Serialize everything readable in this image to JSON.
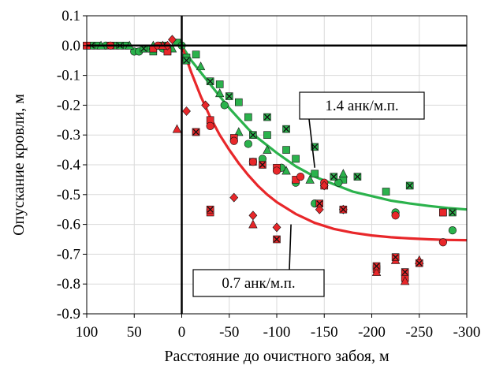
{
  "chart_data": {
    "type": "scatter",
    "title": "",
    "xlabel": "Расстояние до очистного забоя, м",
    "ylabel": "Опускание кровли, м",
    "xlim": [
      100,
      -300
    ],
    "ylim": [
      -0.9,
      0.1
    ],
    "x_ticks": [
      100,
      50,
      0,
      -50,
      -100,
      -150,
      -200,
      -250,
      -300
    ],
    "x_tick_labels": [
      "100",
      "50",
      "0",
      "-50",
      "-100",
      "-150",
      "-200",
      "-250",
      "-300"
    ],
    "y_ticks": [
      0.1,
      0.0,
      -0.1,
      -0.2,
      -0.3,
      -0.4,
      -0.5,
      -0.6,
      -0.7,
      -0.8,
      -0.9
    ],
    "y_tick_labels": [
      "0.1",
      "0.0",
      "-0.1",
      "-0.2",
      "-0.3",
      "-0.4",
      "-0.5",
      "-0.6",
      "-0.7",
      "-0.8",
      "-0.9"
    ],
    "grid": true,
    "colors": {
      "green": "#2bb24c",
      "red": "#e8272a",
      "dark": "#111111"
    },
    "curves": [
      {
        "label": "1.4 анк/м.п.",
        "color": "#2bb24c",
        "x": [
          0,
          -10,
          -20,
          -30,
          -40,
          -50,
          -60,
          -70,
          -80,
          -90,
          -100,
          -120,
          -140,
          -160,
          -180,
          -200,
          -220,
          -240,
          -260,
          -280,
          -300
        ],
        "y": [
          0.0,
          -0.05,
          -0.09,
          -0.13,
          -0.17,
          -0.21,
          -0.245,
          -0.28,
          -0.31,
          -0.335,
          -0.36,
          -0.405,
          -0.44,
          -0.465,
          -0.49,
          -0.505,
          -0.52,
          -0.53,
          -0.538,
          -0.545,
          -0.55
        ]
      },
      {
        "label": "0.7 анк/м.п.",
        "color": "#e8272a",
        "x": [
          0,
          -10,
          -20,
          -30,
          -40,
          -50,
          -60,
          -70,
          -80,
          -90,
          -100,
          -120,
          -140,
          -160,
          -180,
          -200,
          -220,
          -240,
          -260,
          -280,
          -300
        ],
        "y": [
          0.0,
          -0.09,
          -0.17,
          -0.24,
          -0.3,
          -0.35,
          -0.395,
          -0.435,
          -0.47,
          -0.5,
          -0.525,
          -0.565,
          -0.595,
          -0.615,
          -0.628,
          -0.637,
          -0.643,
          -0.647,
          -0.65,
          -0.652,
          -0.653
        ]
      }
    ],
    "annotations": [
      {
        "text": "1.4 анк/м.п.",
        "points_to": [
          -140,
          -0.41
        ]
      },
      {
        "text": "0.7 анк/м.п.",
        "points_to": [
          -115,
          -0.6
        ]
      }
    ],
    "series": [
      {
        "color": "#2bb24c",
        "marker": "square",
        "points": [
          [
            100,
            0.0
          ],
          [
            90,
            0.0
          ],
          [
            70,
            0.0
          ],
          [
            60,
            0.0
          ],
          [
            40,
            -0.01
          ],
          [
            30,
            -0.02
          ],
          [
            15,
            -0.02
          ],
          [
            5,
            0.01
          ],
          [
            -5,
            -0.04
          ],
          [
            -15,
            -0.03
          ],
          [
            -40,
            -0.13
          ],
          [
            -60,
            -0.19
          ],
          [
            -70,
            -0.24
          ],
          [
            -90,
            -0.3
          ],
          [
            -110,
            -0.35
          ],
          [
            -120,
            -0.38
          ],
          [
            -140,
            -0.43
          ],
          [
            -170,
            -0.45
          ],
          [
            -215,
            -0.49
          ],
          [
            -275,
            -0.56
          ]
        ]
      },
      {
        "color": "#2bb24c",
        "marker": "circle",
        "points": [
          [
            80,
            0.0
          ],
          [
            50,
            -0.02
          ],
          [
            45,
            -0.02
          ],
          [
            35,
            -0.01
          ],
          [
            20,
            -0.01
          ],
          [
            0,
            0.0
          ],
          [
            -45,
            -0.2
          ],
          [
            -70,
            -0.33
          ],
          [
            -85,
            -0.38
          ],
          [
            -105,
            -0.41
          ],
          [
            -120,
            -0.46
          ],
          [
            -140,
            -0.53
          ],
          [
            -165,
            -0.46
          ],
          [
            -225,
            -0.56
          ],
          [
            -285,
            -0.62
          ]
        ]
      },
      {
        "color": "#2bb24c",
        "marker": "triangle",
        "points": [
          [
            85,
            0.0
          ],
          [
            55,
            0.0
          ],
          [
            30,
            0.0
          ],
          [
            10,
            -0.01
          ],
          [
            -20,
            -0.07
          ],
          [
            -40,
            -0.16
          ],
          [
            -60,
            -0.29
          ],
          [
            -90,
            -0.35
          ],
          [
            -110,
            -0.42
          ],
          [
            -135,
            -0.45
          ],
          [
            -170,
            -0.43
          ]
        ]
      },
      {
        "color": "#2bb24c",
        "marker": "cross",
        "points": [
          [
            95,
            0.0
          ],
          [
            65,
            0.0
          ],
          [
            40,
            -0.01
          ],
          [
            20,
            0.0
          ],
          [
            -5,
            -0.05
          ],
          [
            -30,
            -0.12
          ],
          [
            -50,
            -0.17
          ],
          [
            -75,
            -0.3
          ],
          [
            -90,
            -0.24
          ],
          [
            -110,
            -0.28
          ],
          [
            -140,
            -0.34
          ],
          [
            -160,
            -0.44
          ],
          [
            -185,
            -0.44
          ],
          [
            -240,
            -0.47
          ],
          [
            -285,
            -0.56
          ]
        ]
      },
      {
        "color": "#e8272a",
        "marker": "square",
        "points": [
          [
            100,
            0.0
          ],
          [
            75,
            0.0
          ],
          [
            30,
            -0.01
          ],
          [
            15,
            -0.02
          ],
          [
            -15,
            -0.29
          ],
          [
            -30,
            -0.25
          ],
          [
            -55,
            -0.31
          ],
          [
            -75,
            -0.39
          ],
          [
            -100,
            -0.41
          ],
          [
            -120,
            -0.45
          ],
          [
            -150,
            -0.47
          ],
          [
            -275,
            -0.56
          ],
          [
            -205,
            -0.75
          ],
          [
            -235,
            -0.78
          ],
          [
            -30,
            -0.56
          ]
        ]
      },
      {
        "color": "#e8272a",
        "marker": "circle",
        "points": [
          [
            75,
            0.0
          ],
          [
            25,
            0.0
          ],
          [
            -30,
            -0.27
          ],
          [
            -55,
            -0.32
          ],
          [
            -75,
            -0.39
          ],
          [
            -100,
            -0.42
          ],
          [
            -125,
            -0.44
          ],
          [
            -150,
            -0.46
          ],
          [
            -225,
            -0.57
          ],
          [
            -275,
            -0.66
          ]
        ]
      },
      {
        "color": "#e8272a",
        "marker": "triangle",
        "points": [
          [
            20,
            0.0
          ],
          [
            5,
            -0.28
          ],
          [
            -75,
            -0.6
          ],
          [
            -225,
            -0.72
          ],
          [
            -250,
            -0.72
          ],
          [
            -205,
            -0.76
          ],
          [
            -235,
            -0.79
          ]
        ]
      },
      {
        "color": "#e8272a",
        "marker": "diamond",
        "points": [
          [
            10,
            0.02
          ],
          [
            15,
            0.0
          ],
          [
            -5,
            -0.22
          ],
          [
            -25,
            -0.2
          ],
          [
            -55,
            -0.51
          ],
          [
            -75,
            -0.57
          ],
          [
            -100,
            -0.61
          ],
          [
            -150,
            -0.47
          ],
          [
            -145,
            -0.55
          ],
          [
            -170,
            -0.55
          ]
        ]
      },
      {
        "color": "#e8272a",
        "marker": "cross",
        "points": [
          [
            -15,
            -0.29
          ],
          [
            -30,
            -0.55
          ],
          [
            -85,
            -0.4
          ],
          [
            -100,
            -0.65
          ],
          [
            -145,
            -0.53
          ],
          [
            -170,
            -0.55
          ],
          [
            -205,
            -0.74
          ],
          [
            -235,
            -0.76
          ],
          [
            -225,
            -0.71
          ],
          [
            -250,
            -0.73
          ]
        ]
      }
    ]
  }
}
